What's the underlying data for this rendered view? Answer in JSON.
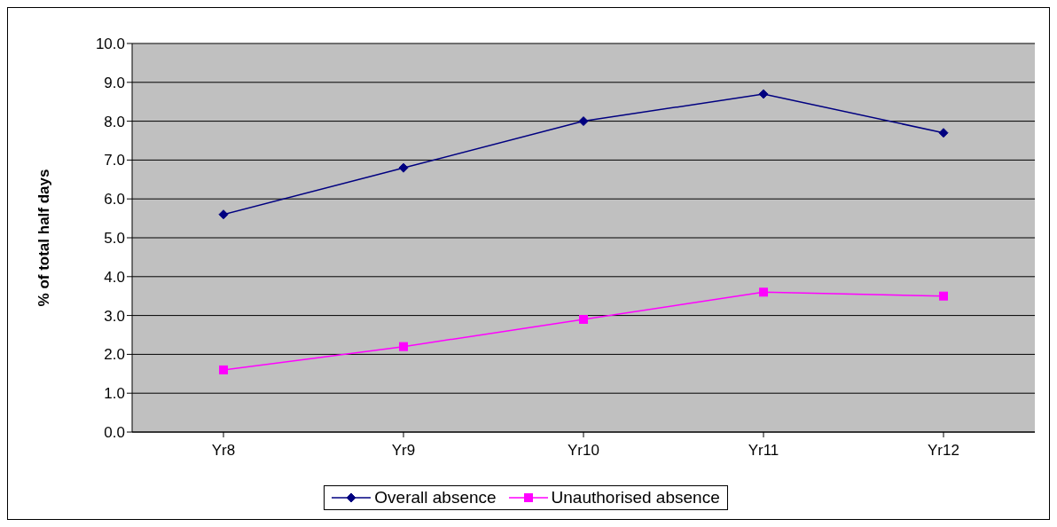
{
  "chart_data": {
    "type": "line",
    "ylabel": "% of total half days",
    "categories": [
      "Yr8",
      "Yr9",
      "Yr10",
      "Yr11",
      "Yr12"
    ],
    "series": [
      {
        "name": "Overall absence",
        "color": "#000080",
        "marker": "diamond",
        "values": [
          5.6,
          6.8,
          8.0,
          8.7,
          7.7
        ]
      },
      {
        "name": "Unauthorised absence",
        "color": "#ff00ff",
        "marker": "square",
        "values": [
          1.6,
          2.2,
          2.9,
          3.6,
          3.5
        ]
      }
    ],
    "ylim": [
      0,
      10
    ],
    "yticks": [
      {
        "value": 0,
        "label": "0.0"
      },
      {
        "value": 1,
        "label": "1.0"
      },
      {
        "value": 2,
        "label": "2.0"
      },
      {
        "value": 3,
        "label": "3.0"
      },
      {
        "value": 4,
        "label": "4.0"
      },
      {
        "value": 5,
        "label": "5.0"
      },
      {
        "value": 6,
        "label": "6.0"
      },
      {
        "value": 7,
        "label": "7.0"
      },
      {
        "value": 8,
        "label": "8.0"
      },
      {
        "value": 9,
        "label": "9.0"
      },
      {
        "value": 10,
        "label": "10.0"
      }
    ],
    "grid": "y",
    "legend": "bottom",
    "line_style": "solid"
  }
}
